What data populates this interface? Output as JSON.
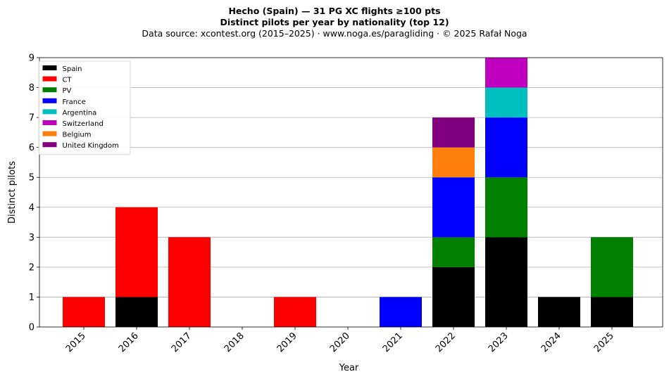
{
  "titles": {
    "line1": "Hecho (Spain)  —  31 PG XC flights ≥100 pts",
    "line2": "Distinct pilots per year by nationality (top 12)",
    "line3": "Data source: xcontest.org (2015–2025)  ·  www.noga.es/paragliding  ·  © 2025 Rafał Noga"
  },
  "chart_data": {
    "type": "bar",
    "stacked": true,
    "categories": [
      "2015",
      "2016",
      "2017",
      "2018",
      "2019",
      "2020",
      "2021",
      "2022",
      "2023",
      "2024",
      "2025"
    ],
    "series": [
      {
        "name": "Spain",
        "color": "#000000",
        "values": [
          0,
          1,
          0,
          0,
          0,
          0,
          0,
          2,
          3,
          1,
          1
        ]
      },
      {
        "name": "CT",
        "color": "#ff0000",
        "values": [
          1,
          3,
          3,
          0,
          1,
          0,
          0,
          0,
          0,
          0,
          0
        ]
      },
      {
        "name": "PV",
        "color": "#008000",
        "values": [
          0,
          0,
          0,
          0,
          0,
          0,
          0,
          1,
          2,
          0,
          2
        ]
      },
      {
        "name": "France",
        "color": "#0000ff",
        "values": [
          0,
          0,
          0,
          0,
          0,
          0,
          1,
          2,
          2,
          0,
          0
        ]
      },
      {
        "name": "Argentina",
        "color": "#00bfbf",
        "values": [
          0,
          0,
          0,
          0,
          0,
          0,
          0,
          0,
          1,
          0,
          0
        ]
      },
      {
        "name": "Switzerland",
        "color": "#bf00bf",
        "values": [
          0,
          0,
          0,
          0,
          0,
          0,
          0,
          0,
          1,
          0,
          0
        ]
      },
      {
        "name": "Belgium",
        "color": "#ff7f0e",
        "values": [
          0,
          0,
          0,
          0,
          0,
          0,
          0,
          1,
          0,
          0,
          0
        ]
      },
      {
        "name": "United Kingdom",
        "color": "#800080",
        "values": [
          0,
          0,
          0,
          0,
          0,
          0,
          0,
          1,
          0,
          0,
          0
        ]
      }
    ],
    "xlabel": "Year",
    "ylabel": "Distinct pilots",
    "ylim": [
      0,
      9
    ],
    "yticks": [
      "0",
      "1",
      "2",
      "3",
      "4",
      "5",
      "6",
      "7",
      "8",
      "9"
    ],
    "grid": "horizontal",
    "legend_position": "top-left"
  }
}
